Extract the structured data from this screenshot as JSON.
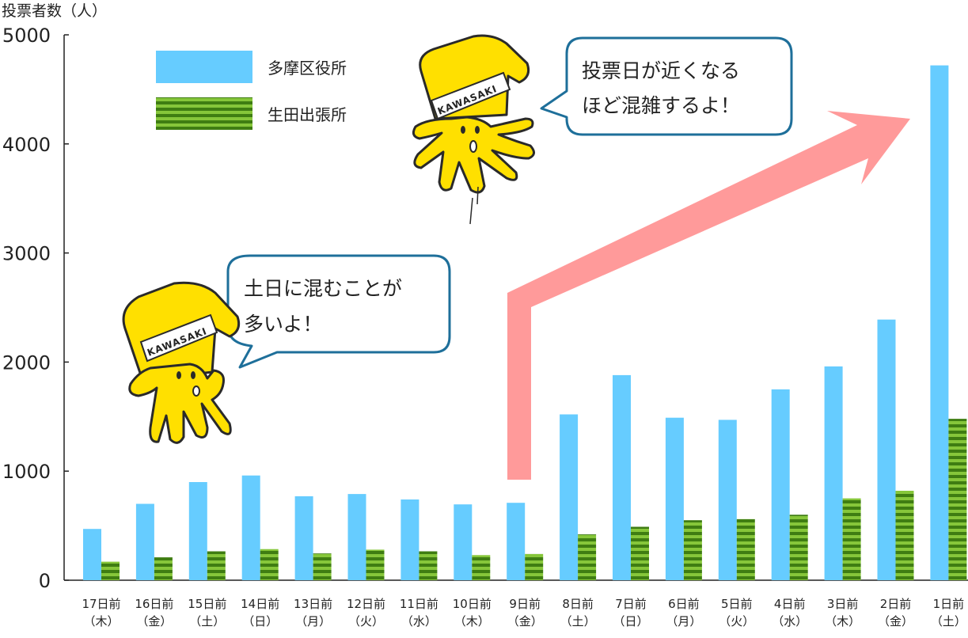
{
  "chart_data": {
    "type": "bar",
    "ylabel": "投票者数（人）",
    "ylim": [
      0,
      5000
    ],
    "yticks": [
      0,
      1000,
      2000,
      3000,
      4000,
      5000
    ],
    "categories": [
      [
        "17日前",
        "（木）"
      ],
      [
        "16日前",
        "（金）"
      ],
      [
        "15日前",
        "（土）"
      ],
      [
        "14日前",
        "（日）"
      ],
      [
        "13日前",
        "（月）"
      ],
      [
        "12日前",
        "（火）"
      ],
      [
        "11日前",
        "（水）"
      ],
      [
        "10日前",
        "（木）"
      ],
      [
        "9日前",
        "（金）"
      ],
      [
        "8日前",
        "（土）"
      ],
      [
        "7日前",
        "（日）"
      ],
      [
        "6日前",
        "（月）"
      ],
      [
        "5日前",
        "（火）"
      ],
      [
        "4日前",
        "（水）"
      ],
      [
        "3日前",
        "（木）"
      ],
      [
        "2日前",
        "（金）"
      ],
      [
        "1日前",
        "（土）"
      ]
    ],
    "series": [
      {
        "name": "多摩区役所",
        "color": "#66ccff",
        "values": [
          470,
          700,
          900,
          960,
          770,
          790,
          740,
          695,
          710,
          1520,
          1880,
          1490,
          1470,
          1750,
          1960,
          2390,
          4720
        ]
      },
      {
        "name": "生田出張所",
        "color": "#5a9a1e",
        "values": [
          170,
          210,
          265,
          285,
          245,
          280,
          265,
          230,
          240,
          420,
          490,
          550,
          560,
          600,
          750,
          820,
          1480
        ]
      }
    ],
    "legend_position": "top-left"
  },
  "callouts": [
    {
      "lines": [
        "土日に混むことが",
        "多いよ！"
      ]
    },
    {
      "lines": [
        "投票日が近くなる",
        "ほど混雑するよ！"
      ]
    }
  ],
  "mascot_band_text": "KAWASAKI",
  "colors": {
    "arrow": "#ff9a9a",
    "bubble_border": "#1e6f9a",
    "mascot": "#ffe000",
    "outline": "#2a2a2a"
  }
}
